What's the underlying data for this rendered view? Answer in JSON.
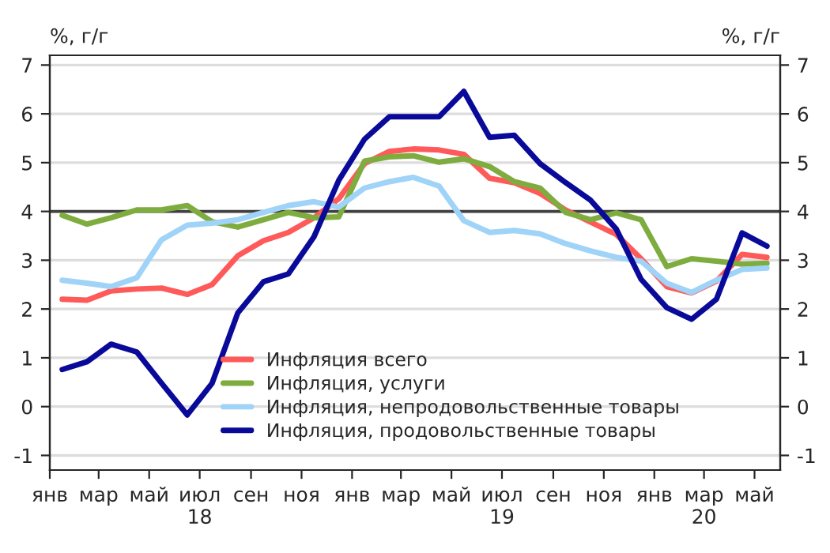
{
  "chart_data": {
    "type": "line",
    "ylabel": "%, г/г",
    "y2label": "%, г/г",
    "x": [
      "2018-01-16",
      "2018-02-15",
      "2018-03-16",
      "2018-04-16",
      "2018-05-16",
      "2018-06-16",
      "2018-07-16",
      "2018-08-16",
      "2018-09-16",
      "2018-10-16",
      "2018-11-16",
      "2018-12-16",
      "2019-01-16",
      "2019-02-15",
      "2019-03-16",
      "2019-04-16",
      "2019-05-16",
      "2019-06-16",
      "2019-07-16",
      "2019-08-16",
      "2019-09-16",
      "2019-10-16",
      "2019-11-16",
      "2019-12-16",
      "2020-01-16",
      "2020-02-15",
      "2020-03-16",
      "2020-04-16",
      "2020-05-16"
    ],
    "series": [
      {
        "name": "Инфляция всего",
        "color": "#ff5a5a",
        "values": [
          2.2,
          2.18,
          2.37,
          2.41,
          2.43,
          2.3,
          2.5,
          3.09,
          3.4,
          3.57,
          3.87,
          4.26,
          4.98,
          5.23,
          5.28,
          5.26,
          5.17,
          4.68,
          4.59,
          4.37,
          4.03,
          3.78,
          3.53,
          3.03,
          2.46,
          2.33,
          2.57,
          3.12,
          3.06
        ]
      },
      {
        "name": "Инфляция, услуги",
        "color": "#7fac3f",
        "values": [
          3.92,
          3.74,
          3.87,
          4.03,
          4.03,
          4.12,
          3.79,
          3.68,
          3.83,
          3.98,
          3.87,
          3.89,
          5.03,
          5.12,
          5.14,
          5.01,
          5.08,
          4.92,
          4.61,
          4.48,
          3.98,
          3.83,
          3.97,
          3.83,
          2.87,
          3.03,
          2.98,
          2.92,
          2.94
        ]
      },
      {
        "name": "Инфляция, непродовольственные товары",
        "color": "#9fd3f7",
        "values": [
          2.59,
          2.53,
          2.46,
          2.64,
          3.42,
          3.72,
          3.76,
          3.83,
          3.98,
          4.12,
          4.2,
          4.09,
          4.48,
          4.61,
          4.7,
          4.52,
          3.81,
          3.57,
          3.61,
          3.54,
          3.34,
          3.19,
          3.06,
          2.98,
          2.53,
          2.34,
          2.59,
          2.81,
          2.84
        ]
      },
      {
        "name": "Инфляция, продовольственные товары",
        "color": "#0a0a9a",
        "values": [
          0.76,
          0.92,
          1.28,
          1.12,
          0.48,
          -0.17,
          0.48,
          1.92,
          2.56,
          2.72,
          3.48,
          4.64,
          5.48,
          5.94,
          5.94,
          5.94,
          6.46,
          5.52,
          5.56,
          4.98,
          4.59,
          4.23,
          3.64,
          2.61,
          2.03,
          1.79,
          2.2,
          3.56,
          3.29
        ]
      }
    ],
    "xlim": [
      "2018-01-01",
      "2020-06-01"
    ],
    "xticks": [
      {
        "value": "2018-01-01",
        "label": "янв"
      },
      {
        "value": "2018-03-01",
        "label": "мар"
      },
      {
        "value": "2018-05-01",
        "label": "май"
      },
      {
        "value": "2018-07-01",
        "label": "июл\n18"
      },
      {
        "value": "2018-09-01",
        "label": "сен"
      },
      {
        "value": "2018-11-01",
        "label": "ноя"
      },
      {
        "value": "2019-01-01",
        "label": "янв"
      },
      {
        "value": "2019-03-01",
        "label": "мар"
      },
      {
        "value": "2019-05-01",
        "label": "май"
      },
      {
        "value": "2019-07-01",
        "label": "июл\n19"
      },
      {
        "value": "2019-09-01",
        "label": "сен"
      },
      {
        "value": "2019-11-01",
        "label": "ноя"
      },
      {
        "value": "2020-01-01",
        "label": "янв"
      },
      {
        "value": "2020-03-01",
        "label": "мар\n20"
      },
      {
        "value": "2020-05-01",
        "label": "май"
      }
    ],
    "ylim": [
      -1.3,
      7.2
    ],
    "yticks": [
      -1,
      0,
      1,
      2,
      3,
      4,
      5,
      6,
      7
    ],
    "y2lim": [
      -1.3,
      7.2
    ],
    "y2ticks": [
      -1,
      0,
      1,
      2,
      3,
      4,
      5,
      6,
      7
    ],
    "ref_lines": [
      {
        "axis": "y",
        "value": 4,
        "label": null,
        "color": "#404040"
      }
    ],
    "grid": "y",
    "legend": "bottom",
    "marker": "none",
    "line_style": "solid"
  }
}
